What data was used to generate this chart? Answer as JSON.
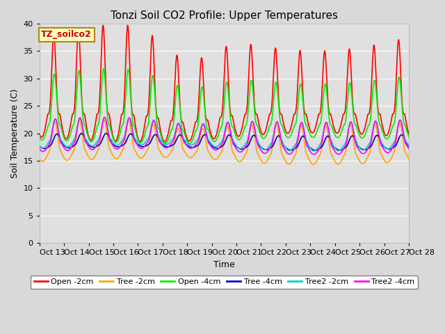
{
  "title": "Tonzi Soil CO2 Profile: Upper Temperatures",
  "xlabel": "Time",
  "ylabel": "Soil Temperature (C)",
  "ylim": [
    0,
    40
  ],
  "xlim": [
    0,
    360
  ],
  "annotation": "TZ_soilco2",
  "x_tick_labels": [
    "Oct 13",
    "Oct 14",
    "Oct 15",
    "Oct 16",
    "Oct 17",
    "Oct 18",
    "Oct 19",
    "Oct 20",
    "Oct 21",
    "Oct 22",
    "Oct 23",
    "Oct 24",
    "Oct 25",
    "Oct 26",
    "Oct 27",
    "Oct 28"
  ],
  "x_tick_positions": [
    0,
    24,
    48,
    72,
    96,
    120,
    144,
    168,
    192,
    216,
    240,
    264,
    288,
    312,
    336,
    360
  ],
  "ytick_positions": [
    0,
    5,
    10,
    15,
    20,
    25,
    30,
    35,
    40
  ],
  "series": [
    {
      "label": "Open -2cm",
      "color": "#ff0000",
      "lw": 1.2
    },
    {
      "label": "Tree -2cm",
      "color": "#ffa500",
      "lw": 1.2
    },
    {
      "label": "Open -4cm",
      "color": "#00ee00",
      "lw": 1.2
    },
    {
      "label": "Tree -4cm",
      "color": "#0000cc",
      "lw": 1.2
    },
    {
      "label": "Tree2 -2cm",
      "color": "#00cccc",
      "lw": 1.2
    },
    {
      "label": "Tree2 -4cm",
      "color": "#ff00ff",
      "lw": 1.2
    }
  ],
  "background_color": "#d9d9d9",
  "plot_bg_color": "#e0e0e0",
  "title_fontsize": 11,
  "axis_fontsize": 9,
  "tick_fontsize": 8,
  "annotation_fontsize": 9,
  "legend_fontsize": 8
}
